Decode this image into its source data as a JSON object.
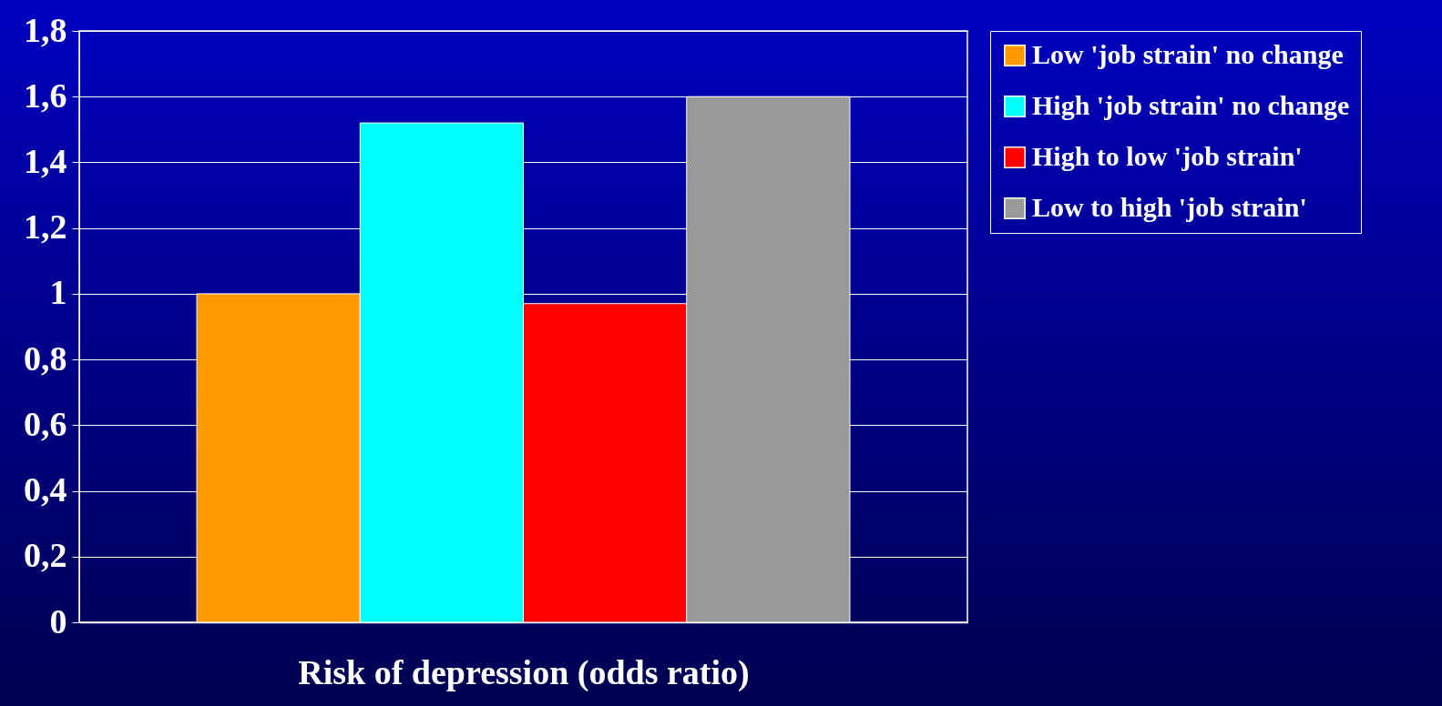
{
  "chart_data": {
    "type": "bar",
    "xlabel": "Risk of depression (odds ratio)",
    "categories": [
      null
    ],
    "series": [
      {
        "name": "Low 'job strain' no change",
        "color": "#ff9900",
        "values": [
          1.0
        ]
      },
      {
        "name": "High 'job strain' no change",
        "color": "#00ffff",
        "values": [
          1.52
        ]
      },
      {
        "name": "High to low 'job strain'",
        "color": "#ff0000",
        "values": [
          0.97
        ]
      },
      {
        "name": "Low to high 'job strain'",
        "color": "#999999",
        "values": [
          1.6
        ]
      }
    ],
    "ylim": [
      0,
      1.8
    ],
    "yticks": [
      0,
      {
        "value": 0.2,
        "label": "0,2"
      },
      {
        "value": 0.4,
        "label": "0,4"
      },
      {
        "value": 0.6,
        "label": "0,6"
      },
      {
        "value": 0.8,
        "label": "0,8"
      },
      1,
      {
        "value": 1.2,
        "label": "1,2"
      },
      {
        "value": 1.4,
        "label": "1,4"
      },
      {
        "value": 1.6,
        "label": "1,6"
      },
      {
        "value": 1.8,
        "label": "1,8"
      }
    ],
    "grid": "y",
    "legend": "right"
  }
}
